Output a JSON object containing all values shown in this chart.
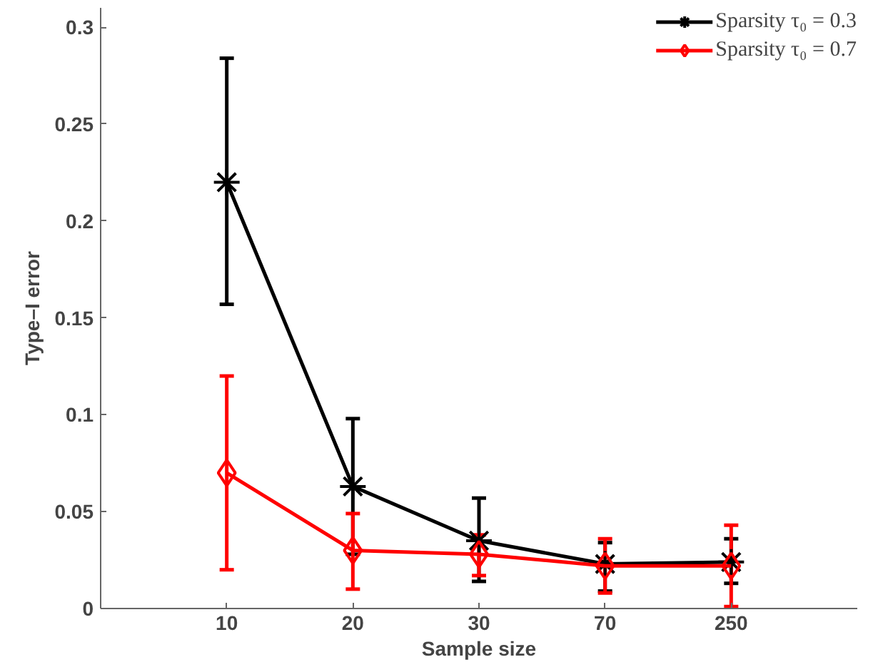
{
  "chart_data": {
    "type": "line",
    "xlabel": "Sample size",
    "ylabel": "Type–I error",
    "categories": [
      "10",
      "20",
      "30",
      "70",
      "250"
    ],
    "ylim": [
      0,
      0.31
    ],
    "yticks": [
      0,
      0.05,
      0.1,
      0.15,
      0.2,
      0.25,
      0.3
    ],
    "grid": false,
    "legend": "top right",
    "line_style": "solid",
    "series": [
      {
        "name": "Sparsity τ₀ = 0.3",
        "color": "#000000",
        "marker": "cross",
        "values": [
          0.22,
          0.063,
          0.035,
          0.023,
          0.024
        ],
        "errors": [
          [
            0.157,
            0.284
          ],
          [
            0.028,
            0.098
          ],
          [
            0.014,
            0.057
          ],
          [
            0.009,
            0.034
          ],
          [
            0.013,
            0.036
          ]
        ]
      },
      {
        "name": "Sparsity τ₀ = 0.7",
        "color": "#ff0000",
        "marker": "diamond",
        "values": [
          0.07,
          0.03,
          0.028,
          0.022,
          0.022
        ],
        "errors": [
          [
            0.02,
            0.12
          ],
          [
            0.01,
            0.049
          ],
          [
            0.017,
            0.038
          ],
          [
            0.008,
            0.036
          ],
          [
            0.001,
            0.043
          ]
        ]
      }
    ]
  }
}
